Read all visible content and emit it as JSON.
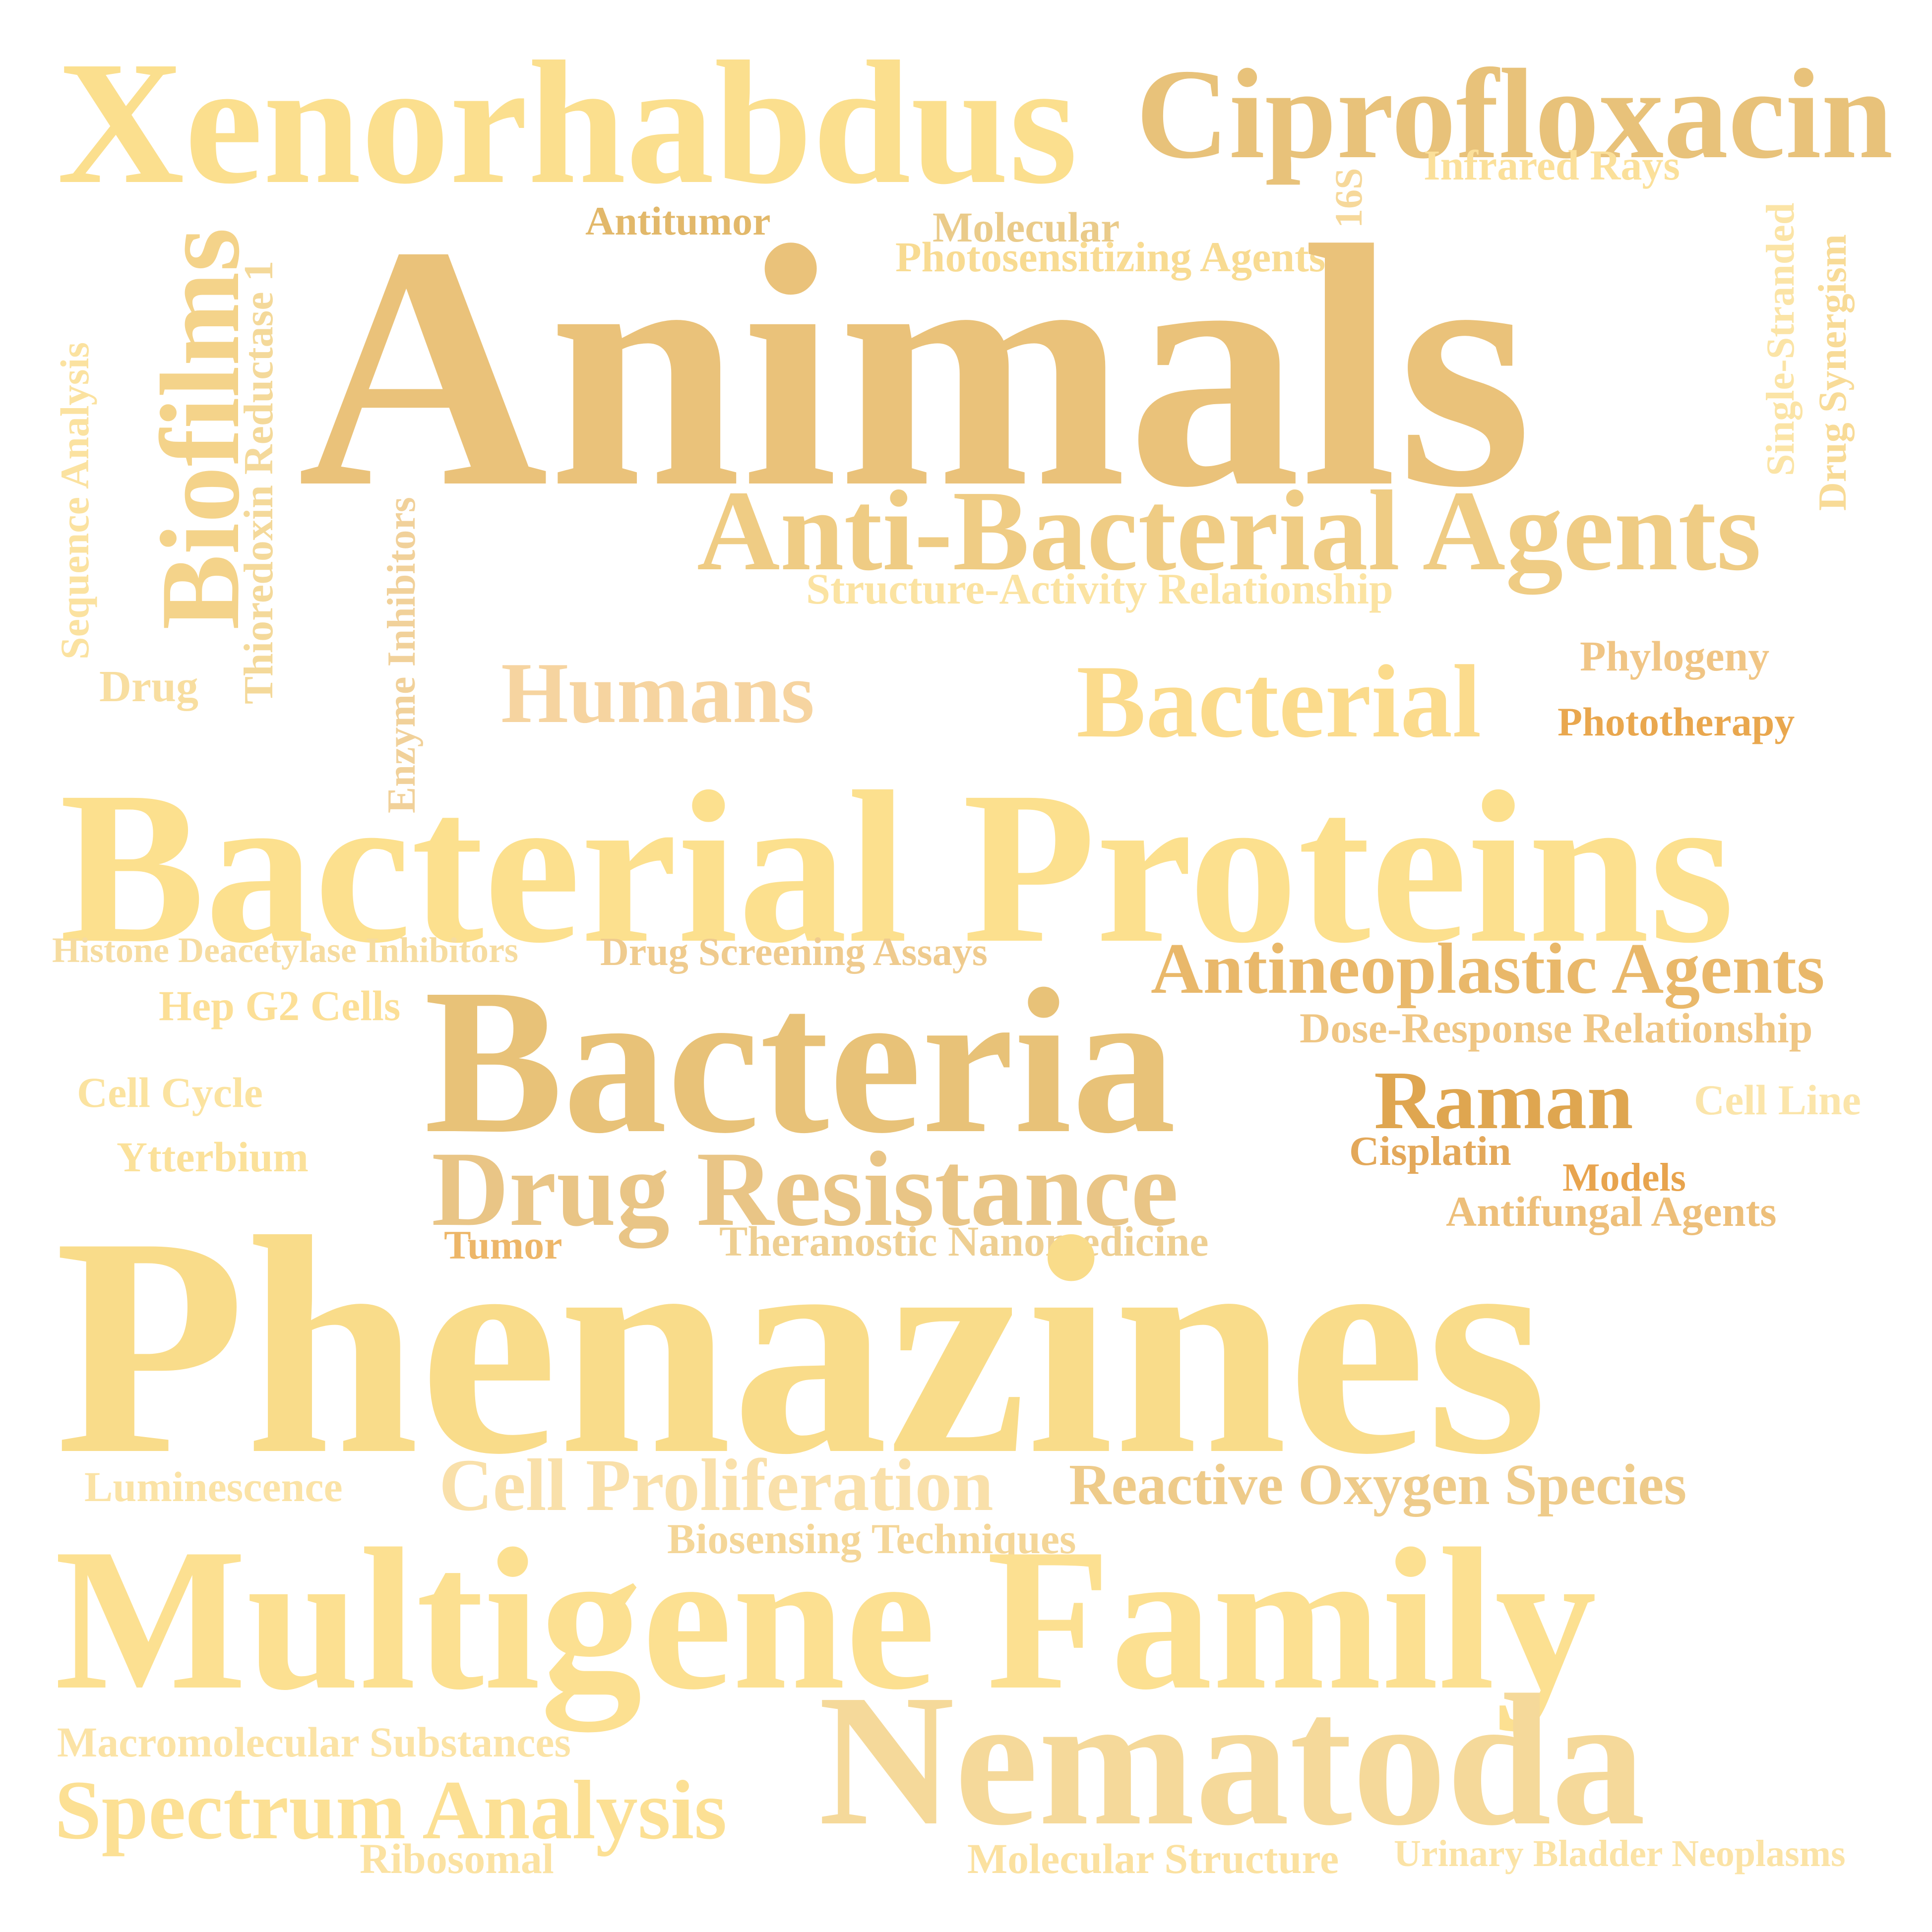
{
  "words": [
    {
      "id": "xenorhabdus",
      "text": "Xenorhabdus",
      "color": "#FBDF8E"
    },
    {
      "id": "ciprofloxacin",
      "text": "Ciprofloxacin",
      "color": "#E8C27A"
    },
    {
      "id": "infrared-rays",
      "text": "Infrared Rays",
      "color": "#FBE09A"
    },
    {
      "id": "16s",
      "text": "16S",
      "color": "#F6D89A"
    },
    {
      "id": "antitumor",
      "text": "Antitumor",
      "color": "#E2B86A"
    },
    {
      "id": "molecular",
      "text": "Molecular",
      "color": "#EACB8A"
    },
    {
      "id": "photosensitizing-agents",
      "text": "Photosensitizing Agents",
      "color": "#F8DB92"
    },
    {
      "id": "animals",
      "text": "Animals",
      "color": "#EAC27A"
    },
    {
      "id": "biofilms",
      "text": "Biofilms",
      "color": "#F4D38A"
    },
    {
      "id": "thioredoxin-reductase-1",
      "text": "Thioredoxin Reductase 1",
      "color": "#F4D99A"
    },
    {
      "id": "sequence-analysis",
      "text": "Sequence Analysis",
      "color": "#FBE2A0"
    },
    {
      "id": "single-stranded",
      "text": "Single-Stranded",
      "color": "#FBE4A6"
    },
    {
      "id": "drug-synergism",
      "text": "Drug Synergism",
      "color": "#F8DB97"
    },
    {
      "id": "enzyme-inhibitors",
      "text": "Enzyme Inhibitors",
      "color": "#F1D19A"
    },
    {
      "id": "anti-bacterial-agents",
      "text": "Anti-Bacterial Agents",
      "color": "#EFCC84"
    },
    {
      "id": "structure-activity-relationship",
      "text": "Structure-Activity Relationship",
      "color": "#FBE3A2"
    },
    {
      "id": "phylogeny",
      "text": "Phylogeny",
      "color": "#F0C585"
    },
    {
      "id": "drug",
      "text": "Drug",
      "color": "#F8DEA0"
    },
    {
      "id": "humans",
      "text": "Humans",
      "color": "#F6D4A0"
    },
    {
      "id": "bacterial",
      "text": "Bacterial",
      "color": "#FBDB8C"
    },
    {
      "id": "phototherapy",
      "text": "Phototherapy",
      "color": "#E9A74E"
    },
    {
      "id": "bacterial-proteins",
      "text": "Bacterial Proteins",
      "color": "#FCE08E"
    },
    {
      "id": "histone-deacetylase-inhibitors",
      "text": "Histone Deacetylase Inhibitors",
      "color": "#F6DCA0"
    },
    {
      "id": "drug-screening-assays",
      "text": "Drug Screening Assays",
      "color": "#EFCB8E"
    },
    {
      "id": "antineoplastic-agents",
      "text": "Antineoplastic Agents",
      "color": "#E9B86A"
    },
    {
      "id": "hep-g2-cells",
      "text": "Hep G2 Cells",
      "color": "#FCDF96"
    },
    {
      "id": "bacteria",
      "text": "Bacteria",
      "color": "#E8C278"
    },
    {
      "id": "dose-response-relationship",
      "text": "Dose-Response Relationship",
      "color": "#EFC684"
    },
    {
      "id": "cell-cycle",
      "text": "Cell Cycle",
      "color": "#FBE3A0"
    },
    {
      "id": "raman",
      "text": "Raman",
      "color": "#DFA650"
    },
    {
      "id": "cell-line",
      "text": "Cell Line",
      "color": "#FBE5AA"
    },
    {
      "id": "ytterbium",
      "text": "Ytterbium",
      "color": "#FBE19A"
    },
    {
      "id": "drug-resistance",
      "text": "Drug Resistance",
      "color": "#E9C586"
    },
    {
      "id": "cisplatin",
      "text": "Cisplatin",
      "color": "#E3A85A"
    },
    {
      "id": "models",
      "text": "Models",
      "color": "#E8A44E"
    },
    {
      "id": "antifungal-agents",
      "text": "Antifungal Agents",
      "color": "#EDBF7A"
    },
    {
      "id": "tumor",
      "text": "Tumor",
      "color": "#EDB668"
    },
    {
      "id": "theranostic-nanomedicine",
      "text": "Theranostic Nanomedicine",
      "color": "#EECF92"
    },
    {
      "id": "phenazines",
      "text": "Phenazines",
      "color": "#F9DC8A"
    },
    {
      "id": "luminescence",
      "text": "Luminescence",
      "color": "#FBE3A6"
    },
    {
      "id": "cell-proliferation",
      "text": "Cell Proliferation",
      "color": "#F9E0AA"
    },
    {
      "id": "reactive-oxygen-species",
      "text": "Reactive Oxygen Species",
      "color": "#EECB8A"
    },
    {
      "id": "biosensing-techniques",
      "text": "Biosensing Techniques",
      "color": "#F4D698"
    },
    {
      "id": "multigene-family",
      "text": "Multigene Family",
      "color": "#FCE091"
    },
    {
      "id": "macromolecular-substances",
      "text": "Macromolecular Substances",
      "color": "#FBE3A6"
    },
    {
      "id": "nematoda",
      "text": "Nematoda",
      "color": "#F5D99A"
    },
    {
      "id": "spectrum-analysis",
      "text": "Spectrum Analysis",
      "color": "#FCE094"
    },
    {
      "id": "ribosomal",
      "text": "Ribosomal",
      "color": "#FBE2A2"
    },
    {
      "id": "molecular-structure",
      "text": "Molecular Structure",
      "color": "#FBE1A0"
    },
    {
      "id": "urinary-bladder-neoplasms",
      "text": "Urinary Bladder Neoplasms",
      "color": "#FBE3A6"
    }
  ]
}
